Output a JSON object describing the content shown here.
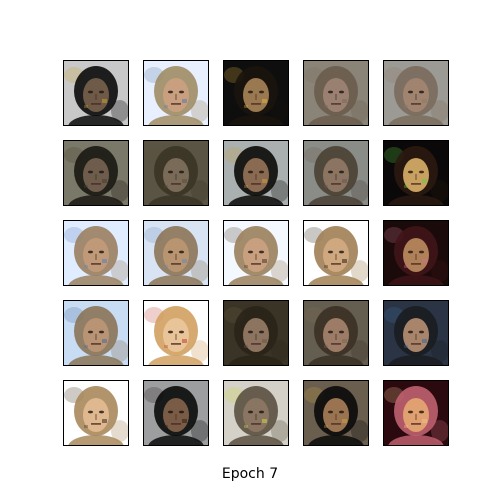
{
  "caption": "Epoch 7",
  "grid": {
    "rows": 5,
    "cols": 5,
    "tiles": [
      {
        "bg": "#c8c8c8",
        "hair": "#0a0a0a",
        "skin": "#6e5a46",
        "accent": "#c8a030"
      },
      {
        "bg": "#e8f0ff",
        "hair": "#a08c64",
        "skin": "#c8a080",
        "accent": "#5a7aa8"
      },
      {
        "bg": "#0e0e0e",
        "hair": "#1a140c",
        "skin": "#9a7850",
        "accent": "#e0b040"
      },
      {
        "bg": "#8a8478",
        "hair": "#6a5c4c",
        "skin": "#9a8070",
        "accent": "#7a6a5a"
      },
      {
        "bg": "#9c9a94",
        "hair": "#7a6c5c",
        "skin": "#a08470",
        "accent": "#8a7a6a"
      },
      {
        "bg": "#7a7868",
        "hair": "#1a1812",
        "skin": "#6e5c4c",
        "accent": "#4a4030"
      },
      {
        "bg": "#5a5444",
        "hair": "#3a3426",
        "skin": "#7a6a58",
        "accent": "#5a4e3a"
      },
      {
        "bg": "#aab0b0",
        "hair": "#0a0a08",
        "skin": "#8a6a50",
        "accent": "#c89a40"
      },
      {
        "bg": "#8a8c88",
        "hair": "#4a4034",
        "skin": "#8c7462",
        "accent": "#6a5a4a"
      },
      {
        "bg": "#0a0808",
        "hair": "#2a1a10",
        "skin": "#c8a060",
        "accent": "#60d040"
      },
      {
        "bg": "#e0ecff",
        "hair": "#9a8060",
        "skin": "#c09a78",
        "accent": "#5a80c0"
      },
      {
        "bg": "#d8e4f4",
        "hair": "#8c7456",
        "skin": "#b89470",
        "accent": "#6a8ab8"
      },
      {
        "bg": "#f4f8ff",
        "hair": "#9a805c",
        "skin": "#c8a080",
        "accent": "#4a3a2a"
      },
      {
        "bg": "#ffffff",
        "hair": "#a08054",
        "skin": "#d0a880",
        "accent": "#2a2418"
      },
      {
        "bg": "#1a0a0a",
        "hair": "#401418",
        "skin": "#b08058",
        "accent": "#d0708a"
      },
      {
        "bg": "#c8dcf4",
        "hair": "#8a7456",
        "skin": "#b89474",
        "accent": "#4a6a9a"
      },
      {
        "bg": "#ffffff",
        "hair": "#d0a060",
        "skin": "#e8c498",
        "accent": "#c04030"
      },
      {
        "bg": "#3a3426",
        "hair": "#2a2418",
        "skin": "#8c7460",
        "accent": "#6a5a44"
      },
      {
        "bg": "#645e50",
        "hair": "#3a3024",
        "skin": "#9c7c66",
        "accent": "#7a6a54"
      },
      {
        "bg": "#2a3444",
        "hair": "#1a1c20",
        "skin": "#a8846a",
        "accent": "#3a6aa0"
      },
      {
        "bg": "#ffffff",
        "hair": "#a8885c",
        "skin": "#e0b890",
        "accent": "#3a3020"
      },
      {
        "bg": "#9c9ea0",
        "hair": "#0a0a0a",
        "skin": "#7a5c46",
        "accent": "#2a2018"
      },
      {
        "bg": "#d4d2c8",
        "hair": "#5a5040",
        "skin": "#8a7462",
        "accent": "#c8d840"
      },
      {
        "bg": "#6a5e4e",
        "hair": "#0a0a0a",
        "skin": "#9a7450",
        "accent": "#c8a040"
      },
      {
        "bg": "#2a0a0e",
        "hair": "#c06070",
        "skin": "#e0a070",
        "accent": "#f0c090"
      }
    ]
  }
}
